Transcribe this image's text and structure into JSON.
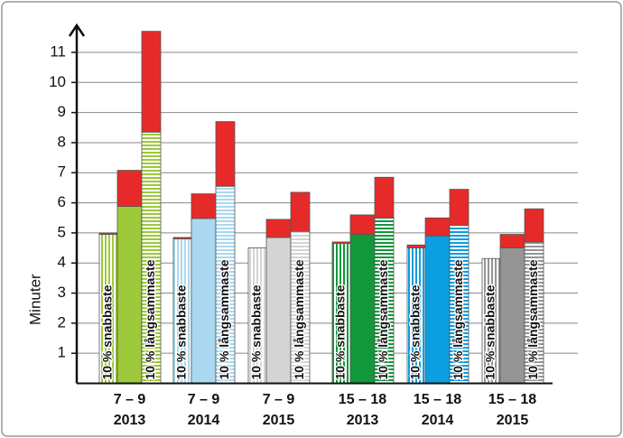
{
  "chart_data": {
    "type": "stacked-group-bar",
    "y_label": "Minuter",
    "ylim": [
      0,
      11.9
    ],
    "yticks": [
      1,
      2,
      3,
      4,
      5,
      6,
      7,
      8,
      9,
      10,
      11
    ],
    "grid": true,
    "bar_labels": [
      "10 % snabbaste",
      null,
      "10 % långsammaste"
    ],
    "top_color": "#e62a2a",
    "categories": [
      [
        "7 – 9",
        "2013"
      ],
      [
        "7 – 9",
        "2014"
      ],
      [
        "7 – 9",
        "2015"
      ],
      [
        "15 – 18",
        "2013"
      ],
      [
        "15 – 18",
        "2014"
      ],
      [
        "15 – 18",
        "2015"
      ]
    ],
    "groups": [
      {
        "color": "#9dc93b",
        "base": [
          4.95,
          5.88,
          8.35
        ],
        "top": [
          0.05,
          1.2,
          3.35
        ]
      },
      {
        "color": "#a9d8f0",
        "base": [
          4.8,
          5.48,
          6.55
        ],
        "top": [
          0.05,
          0.82,
          2.15
        ]
      },
      {
        "color": "#d4d4d4",
        "base": [
          4.5,
          4.85,
          5.05
        ],
        "top": [
          0,
          0.6,
          1.3
        ]
      },
      {
        "color": "#12973b",
        "base": [
          4.65,
          4.95,
          5.5
        ],
        "top": [
          0.05,
          0.65,
          1.35
        ]
      },
      {
        "color": "#0b9ee0",
        "base": [
          4.5,
          4.9,
          5.25
        ],
        "top": [
          0.1,
          0.6,
          1.2
        ]
      },
      {
        "color": "#959595",
        "base": [
          4.15,
          4.5,
          4.7
        ],
        "top": [
          0,
          0.45,
          1.1
        ]
      }
    ]
  }
}
